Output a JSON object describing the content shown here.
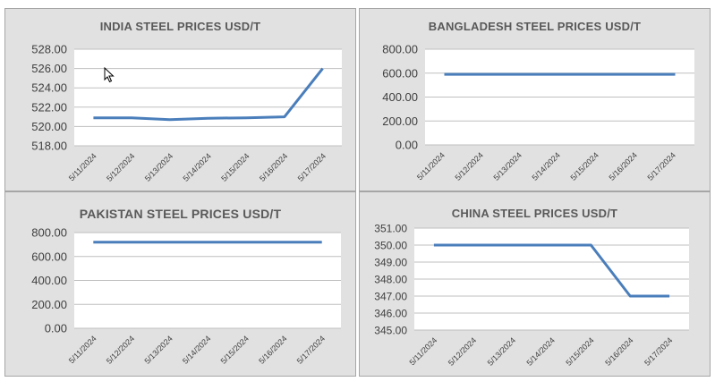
{
  "colors": {
    "line": "#4a7ebb",
    "plot_bg": "#ffffff",
    "panel_bg": "#e1e1e1",
    "grid": "#bfbfbf",
    "tick_text": "#404040",
    "title_text": "#595959"
  },
  "chart_data": [
    {
      "type": "line",
      "title": "INDIA STEEL PRICES USD/T",
      "categories": [
        "5/11/2024",
        "5/12/2024",
        "5/13/2024",
        "5/14/2024",
        "5/15/2024",
        "5/16/2024",
        "5/17/2024"
      ],
      "values": [
        520.9,
        520.9,
        520.7,
        520.85,
        520.9,
        521.0,
        526.0
      ],
      "yticks": [
        "518.00",
        "520.00",
        "522.00",
        "524.00",
        "526.00",
        "528.00"
      ],
      "ylim": [
        518,
        528
      ],
      "grid": true
    },
    {
      "type": "line",
      "title": "BANGLADESH STEEL PRICES USD/T",
      "categories": [
        "5/11/2024",
        "5/12/2024",
        "5/13/2024",
        "5/14/2024",
        "5/15/2024",
        "5/16/2024",
        "5/17/2024"
      ],
      "values": [
        590,
        590,
        590,
        590,
        590,
        590,
        590
      ],
      "yticks": [
        "0.00",
        "200.00",
        "400.00",
        "600.00",
        "800.00"
      ],
      "ylim": [
        0,
        800
      ],
      "grid": true
    },
    {
      "type": "line",
      "title": "PAKISTAN STEEL PRICES USD/T",
      "categories": [
        "5/11/2024",
        "5/12/2024",
        "5/13/2024",
        "5/14/2024",
        "5/15/2024",
        "5/16/2024",
        "5/17/2024"
      ],
      "values": [
        720,
        720,
        720,
        720,
        720,
        720,
        720
      ],
      "yticks": [
        "0.00",
        "200.00",
        "400.00",
        "600.00",
        "800.00"
      ],
      "ylim": [
        0,
        800
      ],
      "grid": true
    },
    {
      "type": "line",
      "title": "CHINA STEEL PRICES USD/T",
      "categories": [
        "5/11/2024",
        "5/12/2024",
        "5/13/2024",
        "5/14/2024",
        "5/15/2024",
        "5/16/2024",
        "5/17/2024"
      ],
      "values": [
        350,
        350,
        350,
        350,
        350,
        347,
        347
      ],
      "yticks": [
        "345.00",
        "346.00",
        "347.00",
        "348.00",
        "349.00",
        "350.00",
        "351.00"
      ],
      "ylim": [
        345,
        351
      ],
      "grid": true
    }
  ]
}
